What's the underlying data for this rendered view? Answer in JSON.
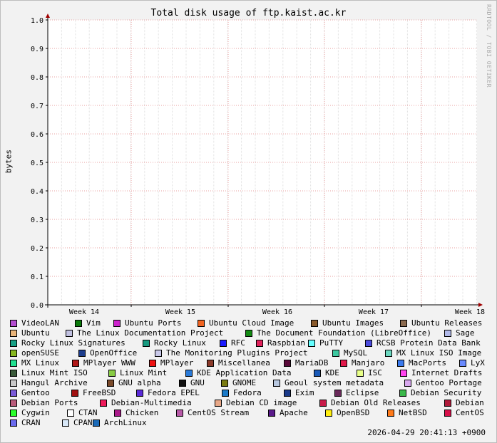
{
  "chart_data": {
    "type": "area",
    "title": "Total disk usage of ftp.kaist.ac.kr",
    "ylabel": "bytes",
    "xlabel": "",
    "ylim": [
      0,
      1.0
    ],
    "y_ticks": [
      "0.0",
      "0.1",
      "0.2",
      "0.3",
      "0.4",
      "0.5",
      "0.6",
      "0.7",
      "0.8",
      "0.9",
      "1.0"
    ],
    "x_ticks": [
      "Week 14",
      "Week 15",
      "Week 16",
      "Week 17",
      "Week 18"
    ],
    "grid": true,
    "legend_position": "bottom",
    "series": [
      {
        "name": "VideoLAN",
        "color": "#b44cd0"
      },
      {
        "name": "Vim",
        "color": "#0b7a0b"
      },
      {
        "name": "Ubuntu Ports",
        "color": "#cc22cc"
      },
      {
        "name": "Ubuntu Cloud Image",
        "color": "#f26522"
      },
      {
        "name": "Ubuntu Images",
        "color": "#8a5a2b"
      },
      {
        "name": "Ubuntu Releases",
        "color": "#8b6a4f"
      },
      {
        "name": "Ubuntu",
        "color": "#e8b47a"
      },
      {
        "name": "The Linux Documentation Project",
        "color": "#c0c0e0"
      },
      {
        "name": "The Document Foundation (LibreOffice)",
        "color": "#138a13"
      },
      {
        "name": "Sage",
        "color": "#b0b8e8"
      },
      {
        "name": "Rocky Linux Signatures",
        "color": "#17a085"
      },
      {
        "name": "Rocky Linux",
        "color": "#179a80"
      },
      {
        "name": "RFC",
        "color": "#1a1aff"
      },
      {
        "name": "Raspbian",
        "color": "#e0205a"
      },
      {
        "name": "PuTTY",
        "color": "#66ffff"
      },
      {
        "name": "RCSB Protein Data Bank",
        "color": "#4b4bdc"
      },
      {
        "name": "openSUSE",
        "color": "#88b820"
      },
      {
        "name": "OpenOffice",
        "color": "#1c3c8c"
      },
      {
        "name": "The Monitoring Plugins Project",
        "color": "#c8c8e8"
      },
      {
        "name": "MySQL",
        "color": "#3cc8a0"
      },
      {
        "name": "MX Linux ISO Image",
        "color": "#6cd8c0"
      },
      {
        "name": "MX Linux",
        "color": "#20e090"
      },
      {
        "name": "MPlayer WWW",
        "color": "#b01818"
      },
      {
        "name": "MPlayer",
        "color": "#ee1111"
      },
      {
        "name": "Miscellanea",
        "color": "#8b3a2a"
      },
      {
        "name": "MariaDB",
        "color": "#5a0a3a"
      },
      {
        "name": "Manjaro",
        "color": "#e0184a"
      },
      {
        "name": "MacPorts",
        "color": "#3a7aee"
      },
      {
        "name": "LyX",
        "color": "#6a8aff"
      },
      {
        "name": "Linux Mint ISO",
        "color": "#3a5a3a"
      },
      {
        "name": "Linux Mint",
        "color": "#88cc44"
      },
      {
        "name": "KDE Application Data",
        "color": "#2a7ad8"
      },
      {
        "name": "KDE",
        "color": "#1a5ab8"
      },
      {
        "name": "ISC",
        "color": "#e8ff88"
      },
      {
        "name": "Internet Drafts",
        "color": "#ff44ee"
      },
      {
        "name": "Hangul Archive",
        "color": "#c8c8c8"
      },
      {
        "name": "GNU alpha",
        "color": "#7a4a2a"
      },
      {
        "name": "GNU",
        "color": "#111111"
      },
      {
        "name": "GNOME",
        "color": "#7a7a10"
      },
      {
        "name": "Geoul system metadata",
        "color": "#b8c8e0"
      },
      {
        "name": "Gentoo Portage",
        "color": "#d8a8ee"
      },
      {
        "name": "Gentoo",
        "color": "#7a5ad8"
      },
      {
        "name": "FreeBSD",
        "color": "#a01010"
      },
      {
        "name": "Fedora EPEL",
        "color": "#5a2ad8"
      },
      {
        "name": "Fedora",
        "color": "#1a7ac8"
      },
      {
        "name": "Exim",
        "color": "#1a3a8a"
      },
      {
        "name": "Eclipse",
        "color": "#6a2a5a"
      },
      {
        "name": "Debian Security",
        "color": "#3ab84a"
      },
      {
        "name": "Debian Ports",
        "color": "#b85a7a"
      },
      {
        "name": "Debian-Multimedia",
        "color": "#ee1a5a"
      },
      {
        "name": "Debian CD image",
        "color": "#e8a888"
      },
      {
        "name": "Debian Old Releases",
        "color": "#c81a4a"
      },
      {
        "name": "Debian",
        "color": "#b01a3a"
      },
      {
        "name": "Cygwin",
        "color": "#2aff2a"
      },
      {
        "name": "CTAN",
        "color": "#ffffff"
      },
      {
        "name": "Chicken",
        "color": "#aa1a8a"
      },
      {
        "name": "CentOS Stream",
        "color": "#b85aa8"
      },
      {
        "name": "Apache",
        "color": "#5a1a8a"
      },
      {
        "name": "OpenBSD",
        "color": "#ffee11"
      },
      {
        "name": "NetBSD",
        "color": "#ff7a1a"
      },
      {
        "name": "CentOS",
        "color": "#d8104a"
      },
      {
        "name": "CRAN",
        "color": "#6a6aee"
      },
      {
        "name": "CPAN",
        "color": "#d8e8f8"
      },
      {
        "name": "ArchLinux",
        "color": "#1a6ab8"
      }
    ],
    "values": []
  },
  "watermark": "RRDTOOL / TOBI OETIKER",
  "timestamp": "2026-04-29 20:41:13 +0900"
}
